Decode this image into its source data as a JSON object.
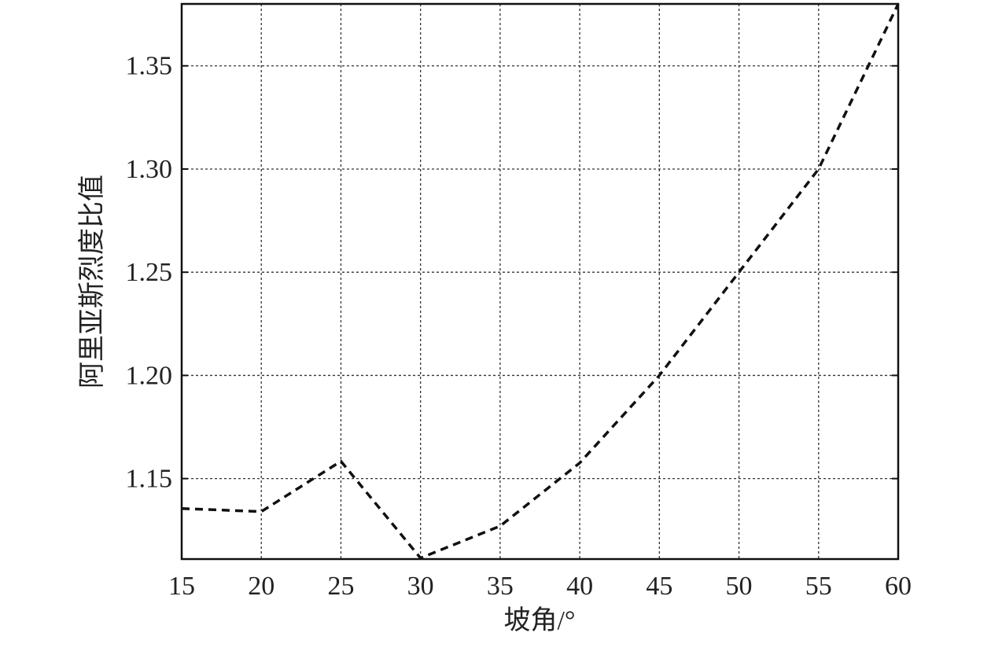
{
  "chart_data": {
    "type": "line",
    "x_label": "坡角/°",
    "y_label": "阿里亚斯烈度比值",
    "x": [
      15,
      20,
      25,
      30,
      35,
      40,
      45,
      50,
      55,
      60
    ],
    "series": [
      {
        "color": "#111111",
        "values": [
          1.1355,
          1.134,
          1.1584,
          1.1115,
          1.127,
          1.1576,
          1.2,
          1.25,
          1.3,
          1.38
        ]
      }
    ],
    "xlim": [
      15,
      60
    ],
    "xticks": [
      15,
      20,
      25,
      30,
      35,
      40,
      45,
      50,
      55,
      60
    ],
    "ylim": [
      1.111,
      1.38
    ],
    "yticks": [
      1.15,
      {
        "value": 1.2,
        "label": "1.20"
      },
      1.25,
      {
        "value": 1.3,
        "label": "1.30"
      },
      1.35
    ],
    "grid": true
  }
}
